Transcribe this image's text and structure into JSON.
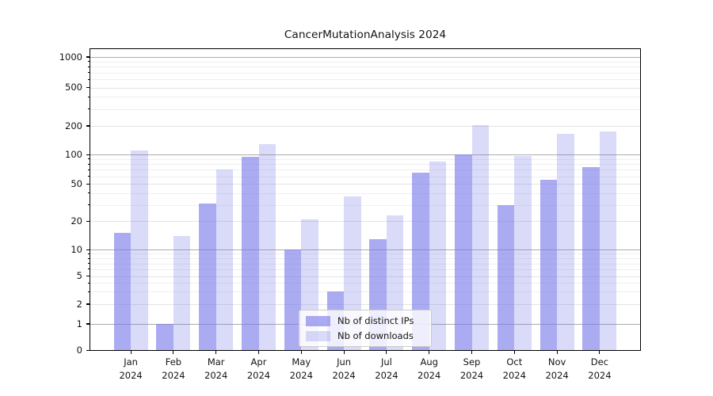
{
  "title": "CancerMutationAnalysis 2024",
  "chart_data": {
    "type": "bar",
    "title": "CancerMutationAnalysis 2024",
    "xlabel": "",
    "ylabel": "",
    "months": [
      "Jan",
      "Feb",
      "Mar",
      "Apr",
      "May",
      "Jun",
      "Jul",
      "Aug",
      "Sep",
      "Oct",
      "Nov",
      "Dec"
    ],
    "year": "2024",
    "categories": [
      "Jan 2024",
      "Feb 2024",
      "Mar 2024",
      "Apr 2024",
      "May 2024",
      "Jun 2024",
      "Jul 2024",
      "Aug 2024",
      "Sep 2024",
      "Oct 2024",
      "Nov 2024",
      "Dec 2024"
    ],
    "series": [
      {
        "name": "Nb of distinct IPs",
        "color": "rgba(122,122,235,0.63)",
        "values": [
          15,
          1,
          31,
          95,
          10,
          3,
          13,
          65,
          101,
          30,
          55,
          75
        ]
      },
      {
        "name": "Nb of downloads",
        "color": "rgba(122,122,235,0.28)",
        "values": [
          110,
          14,
          70,
          130,
          21,
          37,
          23,
          85,
          203,
          97,
          165,
          176
        ]
      }
    ],
    "y_axis": {
      "scale": "log-like with zero baseline",
      "tick_labels": [
        0,
        1,
        2,
        5,
        10,
        20,
        50,
        100,
        200,
        500,
        1000
      ],
      "major_gridlines": [
        1,
        10,
        100,
        1000
      ],
      "medium_gridlines": [
        2,
        5,
        20,
        50,
        200,
        500
      ],
      "minor_gridlines": [
        3,
        4,
        6,
        7,
        8,
        9,
        30,
        40,
        60,
        70,
        80,
        90,
        300,
        400,
        600,
        700,
        800,
        900
      ],
      "range": [
        0,
        1000
      ]
    },
    "legend": {
      "position": "lower center",
      "entries": [
        "Nb of distinct IPs",
        "Nb of downloads"
      ]
    },
    "grid": true
  },
  "colors": {
    "bar_base": "#7a7aeb",
    "grid_major": "#ababab",
    "grid_medium": "#e4e4e4",
    "grid_minor": "#efefef",
    "axis": "#000000",
    "text": "#141414"
  }
}
